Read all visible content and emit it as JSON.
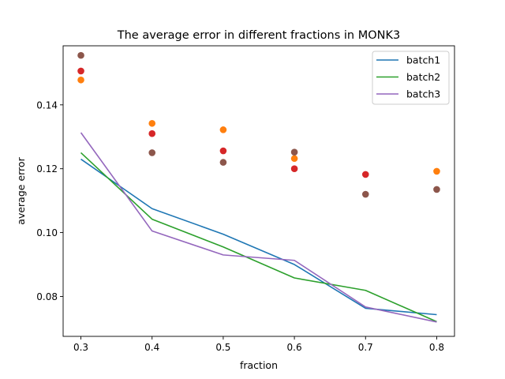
{
  "chart_data": {
    "type": "line",
    "title": "The average error in different fractions in MONK3",
    "xlabel": "fraction",
    "ylabel": "average error",
    "xlim": [
      0.275,
      0.825
    ],
    "ylim": [
      0.0675,
      0.1585
    ],
    "xticks": [
      0.3,
      0.4,
      0.5,
      0.6,
      0.7,
      0.8
    ],
    "xtick_labels": [
      "0.3",
      "0.4",
      "0.5",
      "0.6",
      "0.7",
      "0.8"
    ],
    "yticks": [
      0.08,
      0.1,
      0.12,
      0.14
    ],
    "ytick_labels": [
      "0.08",
      "0.10",
      "0.12",
      "0.14"
    ],
    "grid": false,
    "legend_position": "top-right",
    "x": [
      0.3,
      0.4,
      0.5,
      0.6,
      0.7,
      0.8
    ],
    "series": [
      {
        "name": "batch1",
        "kind": "line",
        "color": "#1f77b4",
        "values": [
          0.123,
          0.1075,
          0.0995,
          0.09,
          0.0763,
          0.0743
        ]
      },
      {
        "name": "batch2",
        "kind": "line",
        "color": "#2ca02c",
        "values": [
          0.125,
          0.1042,
          0.0955,
          0.0858,
          0.0819,
          0.0721
        ]
      },
      {
        "name": "batch3",
        "kind": "line",
        "color": "#9467bd",
        "values": [
          0.1313,
          0.1005,
          0.093,
          0.0913,
          0.0767,
          0.072
        ]
      },
      {
        "kind": "scatter",
        "color": "#ff7f0e",
        "values": [
          0.1478,
          0.1342,
          0.1322,
          0.1232,
          null,
          0.1192
        ]
      },
      {
        "kind": "scatter",
        "color": "#d62728",
        "values": [
          0.1506,
          0.131,
          0.1256,
          0.12,
          0.1182,
          null
        ]
      },
      {
        "kind": "scatter",
        "color": "#8c564b",
        "values": [
          0.1555,
          0.125,
          0.122,
          0.1252,
          0.112,
          0.1135
        ]
      }
    ]
  }
}
